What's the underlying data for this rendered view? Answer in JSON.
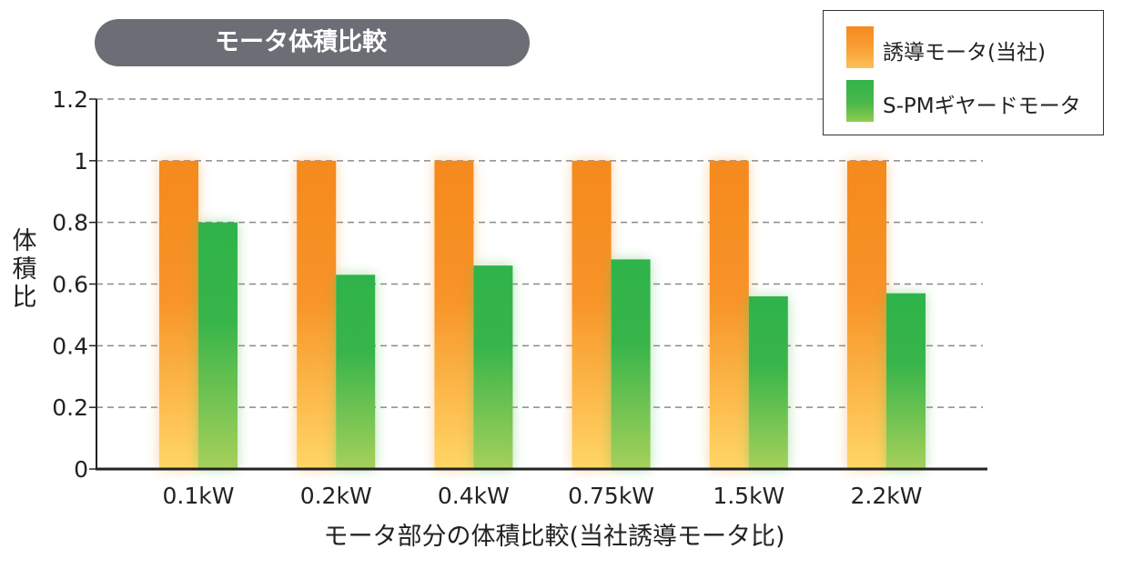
{
  "chart_data": {
    "type": "bar",
    "title": "モータ体積比較",
    "categories": [
      "0.1kW",
      "0.2kW",
      "0.4kW",
      "0.75kW",
      "1.5kW",
      "2.2kW"
    ],
    "series": [
      {
        "name": "誘導モータ(当社)",
        "color": "#f5891d",
        "values": [
          1,
          1,
          1,
          1,
          1,
          1
        ]
      },
      {
        "name": "S-PMギヤードモータ",
        "color": "#32b44a",
        "values": [
          0.8,
          0.63,
          0.66,
          0.68,
          0.56,
          0.57
        ]
      }
    ],
    "ylim": [
      0,
      1.2
    ],
    "yticks": [
      "0",
      "0.2",
      "0.4",
      "0.6",
      "0.8",
      "1",
      "1.2"
    ],
    "ylabel": "体積比",
    "xlabel": "モータ部分の体積比較(当社誘導モータ比)",
    "grid": "dashed horizontal",
    "legend_position": "top-right"
  }
}
